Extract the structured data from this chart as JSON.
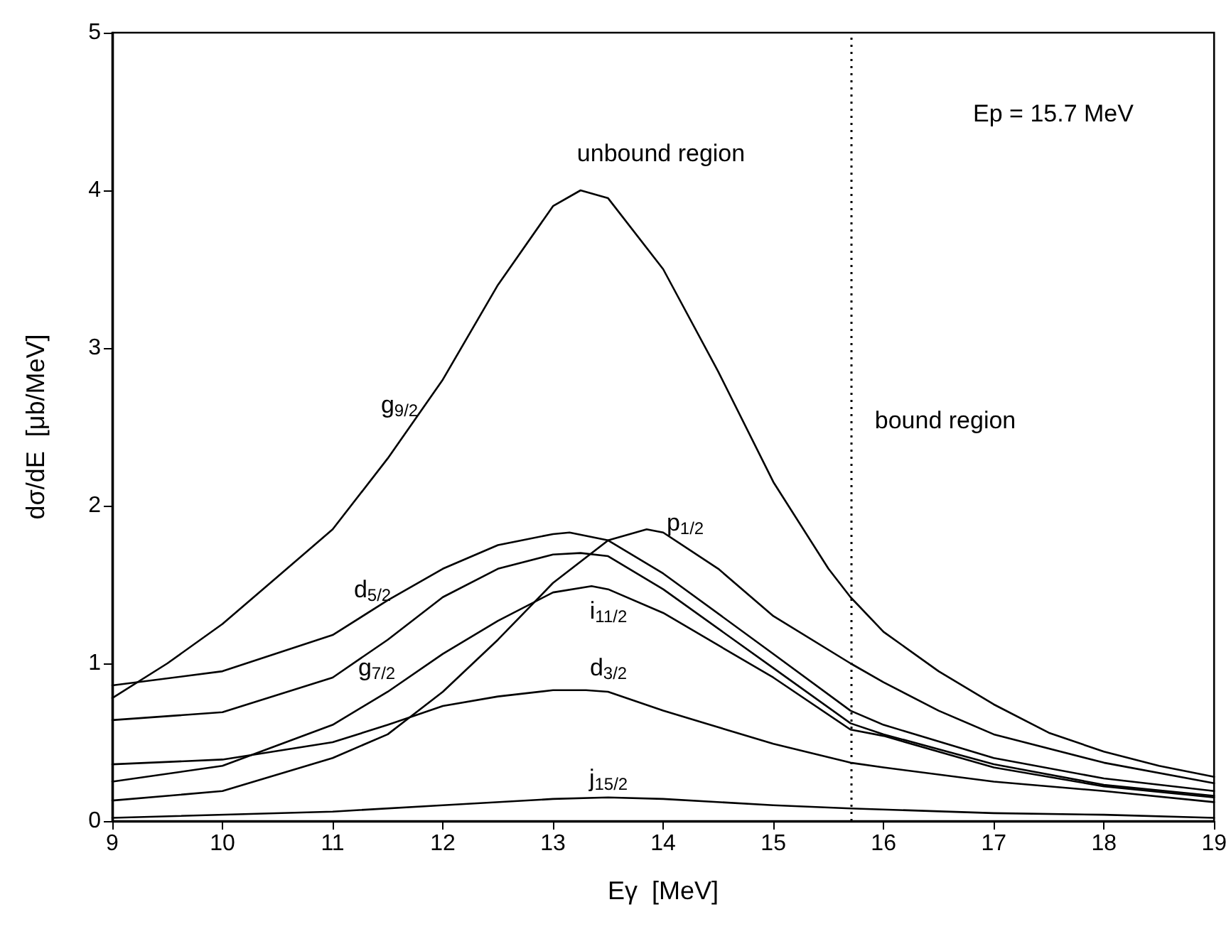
{
  "chart_data": {
    "type": "line",
    "xlabel": "Eγ  [MeV]",
    "ylabel": "dσ/dE  [μb/MeV]",
    "xlim": [
      9,
      19
    ],
    "xticks": [
      9,
      10,
      11,
      12,
      13,
      14,
      15,
      16,
      17,
      18,
      19
    ],
    "ylim": [
      0,
      5
    ],
    "yticks": [
      0,
      1,
      2,
      3,
      4,
      5
    ],
    "grid": false,
    "legend": false,
    "marker": "none",
    "line_style": "solid",
    "series": [
      {
        "name": "g$_{9/2}$",
        "color": "#000000",
        "x": [
          9,
          9.5,
          10,
          10.5,
          11,
          11.5,
          12,
          12.5,
          13,
          13.25,
          13.5,
          14,
          14.5,
          15,
          15.5,
          15.7,
          16,
          16.5,
          17,
          17.5,
          18,
          18.5,
          19
        ],
        "values": [
          0.78,
          1.0,
          1.25,
          1.55,
          1.85,
          2.3,
          2.8,
          3.4,
          3.9,
          4.0,
          3.95,
          3.5,
          2.85,
          2.15,
          1.6,
          1.42,
          1.2,
          0.95,
          0.74,
          0.56,
          0.44,
          0.35,
          0.28
        ]
      },
      {
        "name": "p$_{1/2}$",
        "color": "#000000",
        "x": [
          9,
          10,
          11,
          11.5,
          12,
          12.5,
          13,
          13.5,
          13.85,
          14,
          14.5,
          15,
          15.7,
          16,
          16.5,
          17,
          18,
          19
        ],
        "values": [
          0.13,
          0.19,
          0.4,
          0.55,
          0.82,
          1.15,
          1.51,
          1.78,
          1.85,
          1.83,
          1.6,
          1.3,
          1.0,
          0.88,
          0.7,
          0.55,
          0.37,
          0.24
        ]
      },
      {
        "name": "d$_{5/2}$",
        "color": "#000000",
        "x": [
          9,
          10,
          11,
          11.5,
          12,
          12.5,
          13,
          13.15,
          13.5,
          14,
          15,
          15.7,
          16,
          17,
          18,
          19
        ],
        "values": [
          0.86,
          0.95,
          1.18,
          1.4,
          1.6,
          1.75,
          1.82,
          1.83,
          1.78,
          1.57,
          1.06,
          0.7,
          0.61,
          0.4,
          0.27,
          0.19
        ]
      },
      {
        "name": "g$_{7/2}$",
        "color": "#000000",
        "x": [
          9,
          10,
          11,
          11.5,
          12,
          12.5,
          13,
          13.25,
          13.5,
          14,
          15,
          15.7,
          16,
          17,
          18,
          19
        ],
        "values": [
          0.64,
          0.69,
          0.91,
          1.15,
          1.42,
          1.6,
          1.69,
          1.7,
          1.68,
          1.47,
          0.97,
          0.62,
          0.55,
          0.36,
          0.23,
          0.16
        ]
      },
      {
        "name": "i$_{11/2}$",
        "color": "#000000",
        "x": [
          9,
          10,
          11,
          11.5,
          12,
          12.5,
          13,
          13.35,
          13.5,
          14,
          15,
          15.7,
          16,
          17,
          18,
          19
        ],
        "values": [
          0.25,
          0.35,
          0.61,
          0.82,
          1.06,
          1.27,
          1.45,
          1.49,
          1.47,
          1.32,
          0.91,
          0.58,
          0.54,
          0.34,
          0.22,
          0.15
        ]
      },
      {
        "name": "d$_{3/2}$",
        "color": "#000000",
        "x": [
          9,
          10,
          11,
          11.5,
          12,
          12.5,
          13,
          13.3,
          13.5,
          14,
          15,
          15.7,
          16,
          17,
          18,
          19
        ],
        "values": [
          0.36,
          0.39,
          0.5,
          0.61,
          0.73,
          0.79,
          0.83,
          0.83,
          0.82,
          0.7,
          0.49,
          0.37,
          0.34,
          0.25,
          0.19,
          0.12
        ]
      },
      {
        "name": "j$_{15/2}$",
        "color": "#000000",
        "x": [
          9,
          11,
          12,
          13,
          13.5,
          14,
          15,
          15.7,
          17,
          18,
          19
        ],
        "values": [
          0.02,
          0.06,
          0.1,
          0.14,
          0.15,
          0.14,
          0.1,
          0.08,
          0.05,
          0.04,
          0.02
        ]
      }
    ],
    "ref_lines": [
      {
        "axis": "x",
        "value": 15.7,
        "line_style": "dotted",
        "color": "#000000"
      }
    ],
    "annotations": [
      "unbound region",
      "bound region",
      "Ep = 15.7 MeV"
    ]
  }
}
